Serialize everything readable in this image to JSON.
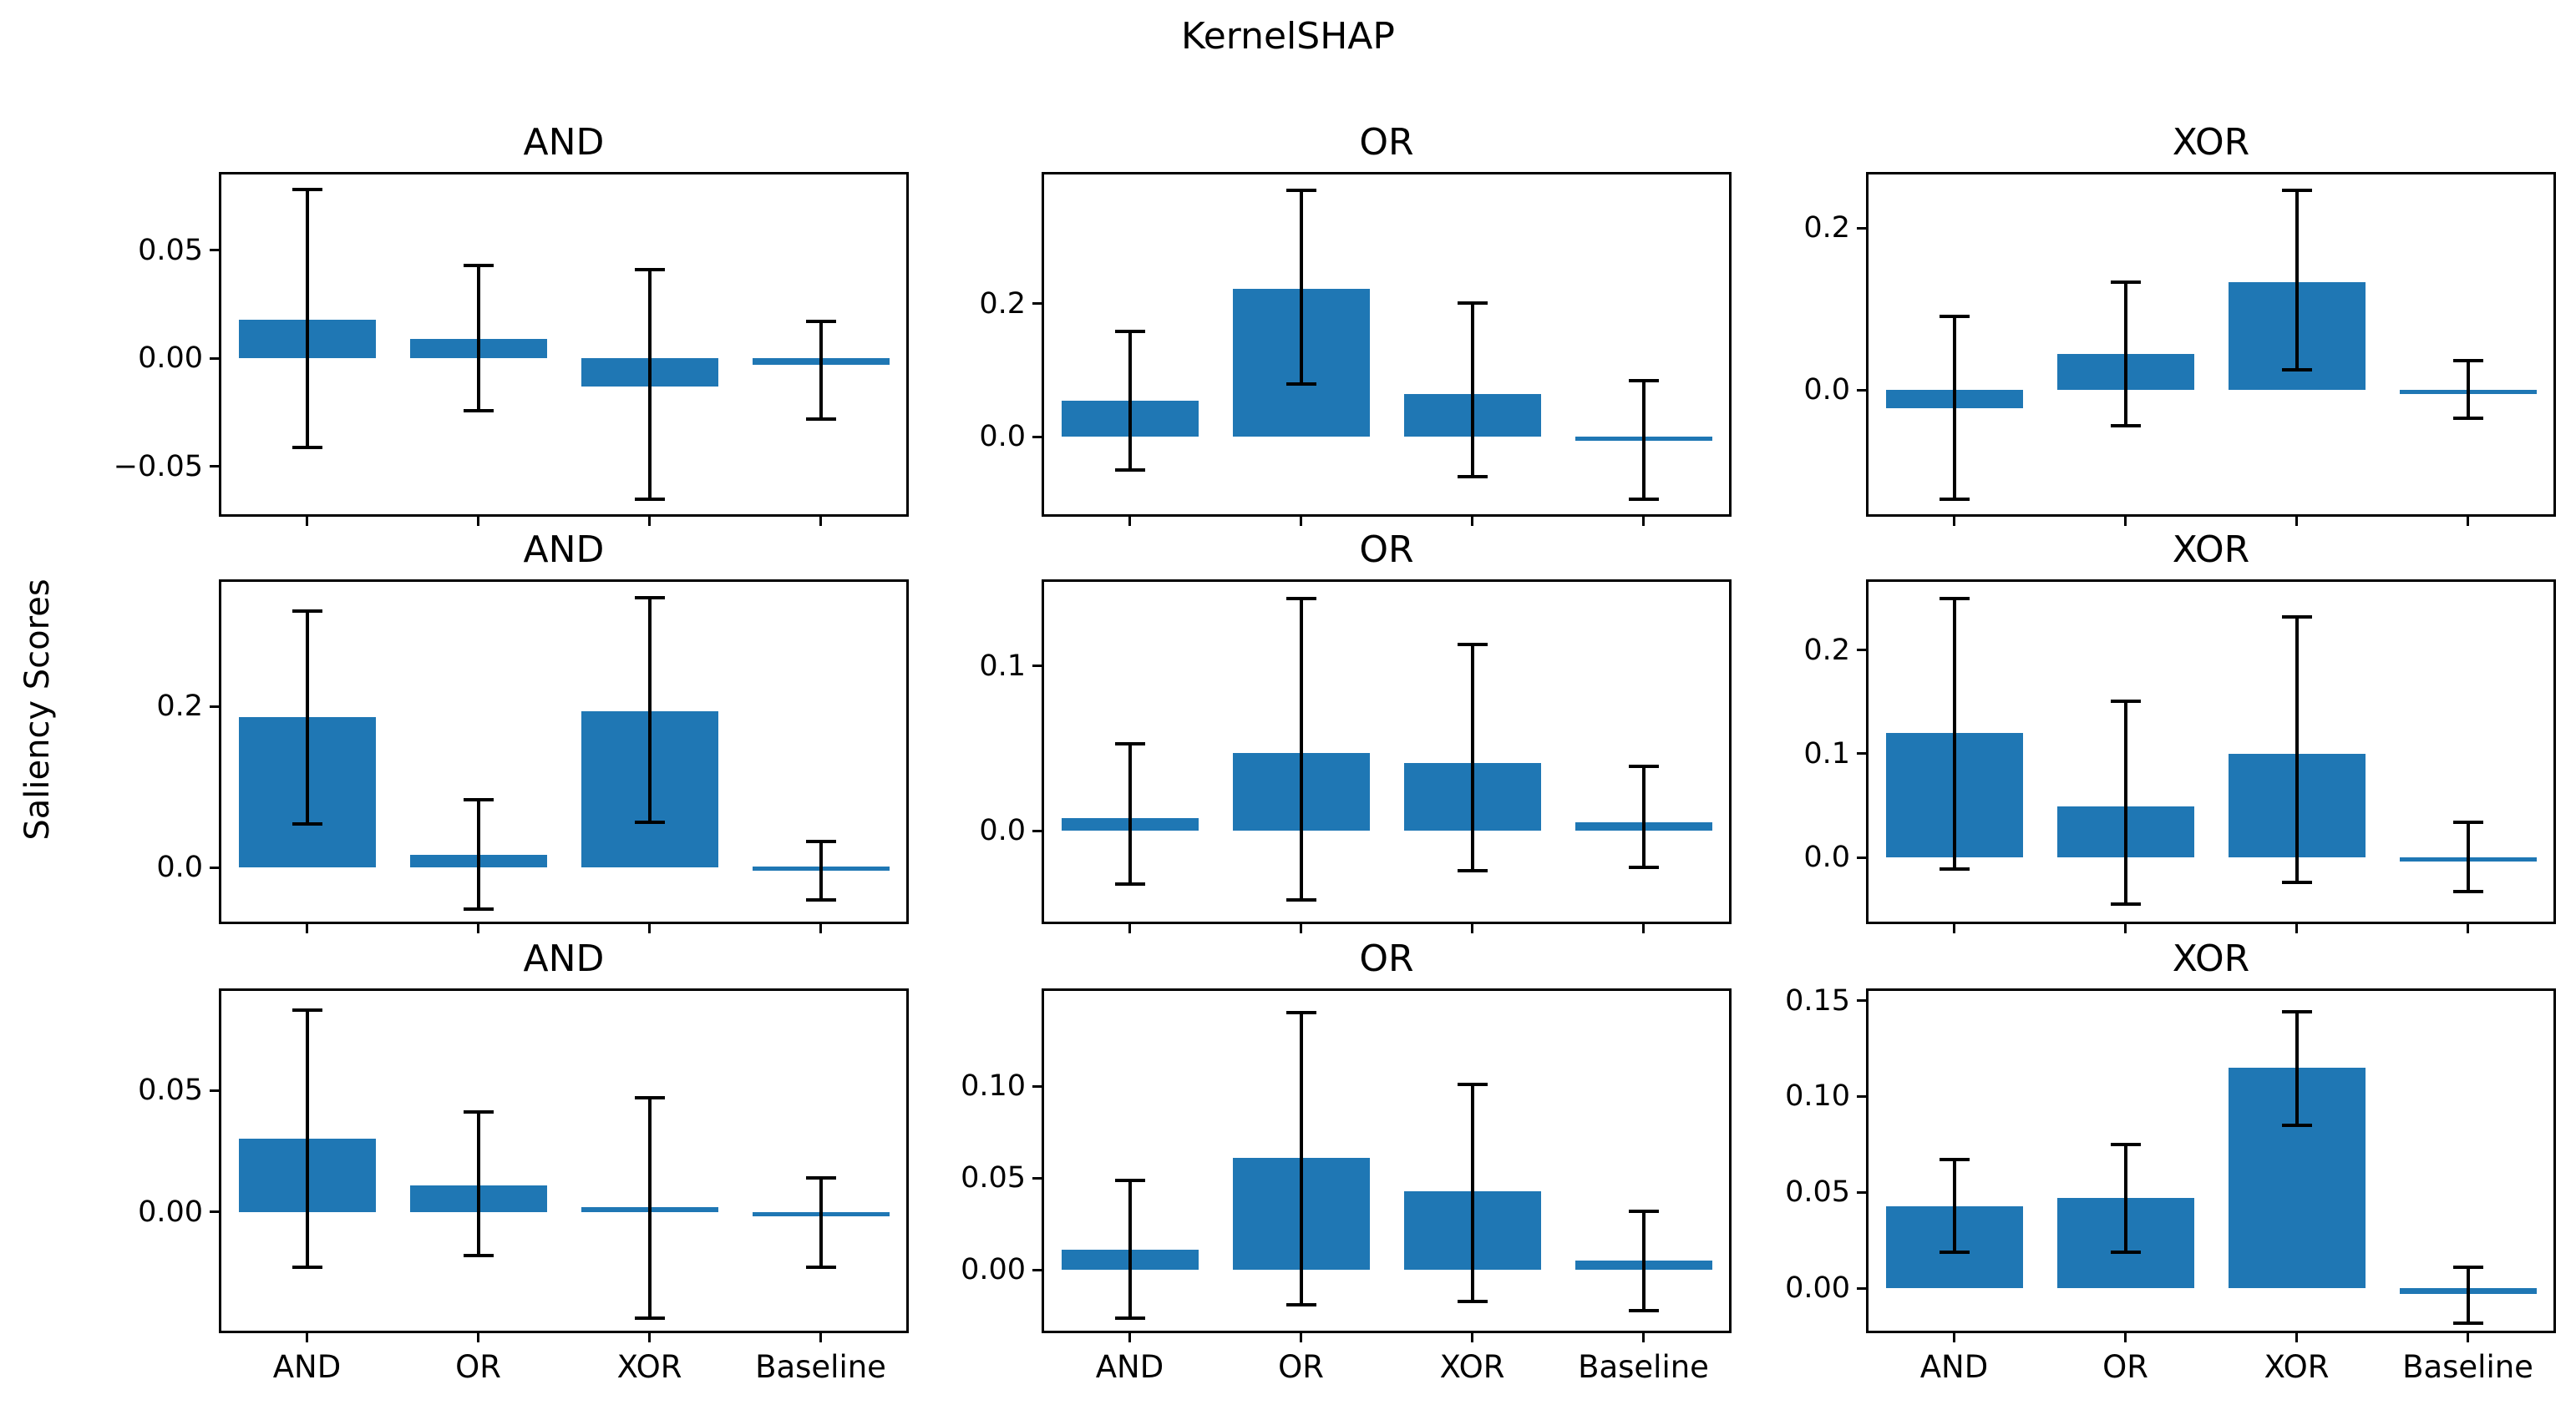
{
  "figure": {
    "suptitle": "KernelSHAP",
    "ylabel": "Saliency Scores"
  },
  "colors": {
    "bar": "#1f77b4",
    "error": "#000000",
    "axes": "#000000",
    "background": "#ffffff"
  },
  "chart_data": [
    {
      "type": "bar",
      "title": "AND",
      "row": 1,
      "col": 1,
      "categories": [
        "AND",
        "OR",
        "XOR",
        "Baseline"
      ],
      "values": [
        0.018,
        0.009,
        -0.013,
        -0.003
      ],
      "error_high": [
        0.078,
        0.043,
        0.041,
        0.017
      ],
      "error_low": [
        -0.041,
        -0.024,
        -0.065,
        -0.028
      ],
      "ylim": [
        -0.072,
        0.085
      ],
      "yticks": [
        {
          "value": 0.05,
          "label": "0.05"
        },
        {
          "value": 0.0,
          "label": "0.00"
        },
        {
          "value": -0.05,
          "label": "−0.05"
        }
      ],
      "show_x_tick_labels": false
    },
    {
      "type": "bar",
      "title": "OR",
      "row": 1,
      "col": 2,
      "categories": [
        "AND",
        "OR",
        "XOR",
        "Baseline"
      ],
      "values": [
        0.054,
        0.222,
        0.065,
        -0.004
      ],
      "error_high": [
        0.158,
        0.37,
        0.201,
        0.085
      ],
      "error_low": [
        -0.05,
        0.079,
        -0.059,
        -0.094
      ],
      "ylim": [
        -0.116,
        0.394
      ],
      "yticks": [
        {
          "value": 0.2,
          "label": "0.2"
        },
        {
          "value": 0.0,
          "label": "0.0"
        }
      ],
      "show_x_tick_labels": false
    },
    {
      "type": "bar",
      "title": "XOR",
      "row": 1,
      "col": 3,
      "categories": [
        "AND",
        "OR",
        "XOR",
        "Baseline"
      ],
      "values": [
        -0.022,
        0.045,
        0.133,
        -0.002
      ],
      "error_high": [
        0.091,
        0.133,
        0.246,
        0.036
      ],
      "error_low": [
        -0.134,
        -0.044,
        0.025,
        -0.035
      ],
      "ylim": [
        -0.153,
        0.266
      ],
      "yticks": [
        {
          "value": 0.2,
          "label": "0.2"
        },
        {
          "value": 0.0,
          "label": "0.0"
        }
      ],
      "show_x_tick_labels": false
    },
    {
      "type": "bar",
      "title": "AND",
      "row": 2,
      "col": 1,
      "categories": [
        "AND",
        "OR",
        "XOR",
        "Baseline"
      ],
      "values": [
        0.187,
        0.016,
        0.194,
        0.001
      ],
      "error_high": [
        0.319,
        0.084,
        0.335,
        0.033
      ],
      "error_low": [
        0.054,
        -0.051,
        0.056,
        -0.04
      ],
      "ylim": [
        -0.067,
        0.355
      ],
      "yticks": [
        {
          "value": 0.2,
          "label": "0.2"
        },
        {
          "value": 0.0,
          "label": "0.0"
        }
      ],
      "show_x_tick_labels": false
    },
    {
      "type": "bar",
      "title": "OR",
      "row": 2,
      "col": 2,
      "categories": [
        "AND",
        "OR",
        "XOR",
        "Baseline"
      ],
      "values": [
        0.008,
        0.047,
        0.041,
        0.005
      ],
      "error_high": [
        0.053,
        0.141,
        0.113,
        0.039
      ],
      "error_low": [
        -0.032,
        -0.042,
        -0.024,
        -0.022
      ],
      "ylim": [
        -0.055,
        0.151
      ],
      "yticks": [
        {
          "value": 0.1,
          "label": "0.1"
        },
        {
          "value": 0.0,
          "label": "0.0"
        }
      ],
      "show_x_tick_labels": false
    },
    {
      "type": "bar",
      "title": "XOR",
      "row": 2,
      "col": 3,
      "categories": [
        "AND",
        "OR",
        "XOR",
        "Baseline"
      ],
      "values": [
        0.12,
        0.049,
        0.1,
        -0.003
      ],
      "error_high": [
        0.25,
        0.151,
        0.232,
        0.034
      ],
      "error_low": [
        -0.011,
        -0.045,
        -0.024,
        -0.033
      ],
      "ylim": [
        -0.062,
        0.266
      ],
      "yticks": [
        {
          "value": 0.2,
          "label": "0.2"
        },
        {
          "value": 0.1,
          "label": "0.1"
        },
        {
          "value": 0.0,
          "label": "0.0"
        }
      ],
      "show_x_tick_labels": false
    },
    {
      "type": "bar",
      "title": "AND",
      "row": 3,
      "col": 1,
      "categories": [
        "AND",
        "OR",
        "XOR",
        "Baseline"
      ],
      "values": [
        0.03,
        0.011,
        0.002,
        -0.002
      ],
      "error_high": [
        0.083,
        0.041,
        0.047,
        0.014
      ],
      "error_low": [
        -0.023,
        -0.018,
        -0.044,
        -0.023
      ],
      "ylim": [
        -0.049,
        0.091
      ],
      "yticks": [
        {
          "value": 0.05,
          "label": "0.05"
        },
        {
          "value": 0.0,
          "label": "0.00"
        }
      ],
      "show_x_tick_labels": true
    },
    {
      "type": "bar",
      "title": "OR",
      "row": 3,
      "col": 2,
      "categories": [
        "AND",
        "OR",
        "XOR",
        "Baseline"
      ],
      "values": [
        0.011,
        0.061,
        0.043,
        0.005
      ],
      "error_high": [
        0.049,
        0.14,
        0.101,
        0.032
      ],
      "error_low": [
        -0.026,
        -0.019,
        -0.017,
        -0.022
      ],
      "ylim": [
        -0.033,
        0.152
      ],
      "yticks": [
        {
          "value": 0.1,
          "label": "0.10"
        },
        {
          "value": 0.05,
          "label": "0.05"
        },
        {
          "value": 0.0,
          "label": "0.00"
        }
      ],
      "show_x_tick_labels": true
    },
    {
      "type": "bar",
      "title": "XOR",
      "row": 3,
      "col": 3,
      "categories": [
        "AND",
        "OR",
        "XOR",
        "Baseline"
      ],
      "values": [
        0.043,
        0.047,
        0.115,
        -0.003
      ],
      "error_high": [
        0.067,
        0.075,
        0.144,
        0.011
      ],
      "error_low": [
        0.019,
        0.019,
        0.085,
        -0.018
      ],
      "ylim": [
        -0.022,
        0.155
      ],
      "yticks": [
        {
          "value": 0.15,
          "label": "0.15"
        },
        {
          "value": 0.1,
          "label": "0.10"
        },
        {
          "value": 0.05,
          "label": "0.05"
        },
        {
          "value": 0.0,
          "label": "0.00"
        }
      ],
      "show_x_tick_labels": true
    }
  ]
}
